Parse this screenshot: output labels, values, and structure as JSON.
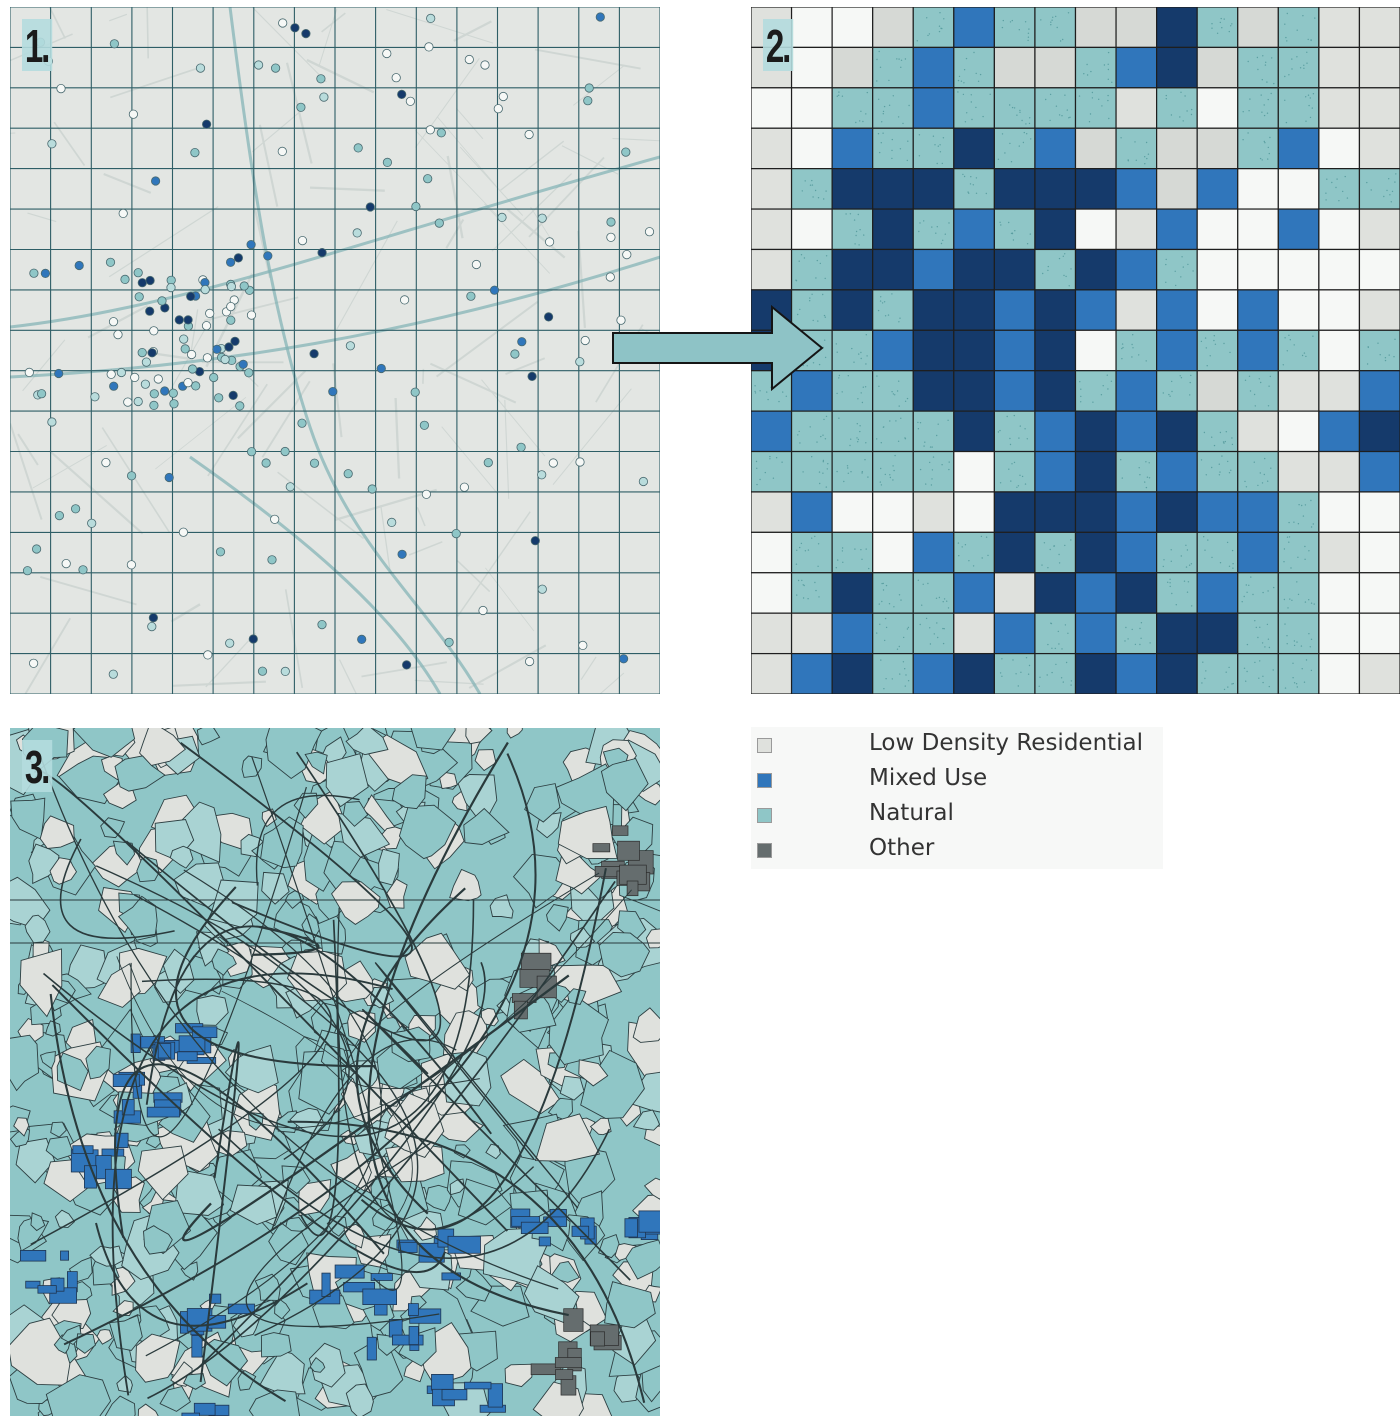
{
  "panels": [
    {
      "number": "1."
    },
    {
      "number": "2."
    },
    {
      "number": "3."
    }
  ],
  "colors": {
    "low_density_residential": "#dfe1dd",
    "mixed_use": "#3076bb",
    "natural": "#8fc6c7",
    "other": "#656d6e",
    "very_light": "#f6f8f6",
    "dark_navy": "#153a6b",
    "map_background": "#e3e6e3",
    "map_grid": "#2e5e66",
    "arrow_fill": "#8ec3c6"
  },
  "legend": {
    "items": [
      {
        "label": "Low Density Residential",
        "color": "#dfe1dd"
      },
      {
        "label": "Mixed Use",
        "color": "#3076bb"
      },
      {
        "label": "Natural",
        "color": "#8fc6c7"
      },
      {
        "label": "Other",
        "color": "#656d6e"
      }
    ]
  },
  "grid": {
    "rows": [
      "21134W4433543422",
      "2134W4334W534422",
      "1144W44442414422",
      "21W4454W34334W12",
      "245554555W3W1144",
      "21454W4512W11W12",
      "2455W5545W411111",
      "545455W5W2W1W112",
      "544W55W514W4W414",
      "4W4455W54W43422W",
      "W444454W5W5421W5",
      "4444414W54W4422W",
      "2W1121555W5WW411",
      "1441W4545W44W421",
      "14544W25W54W4411",
      "22W442W4W4554411",
      "2W54W5445W544412"
    ],
    "legend_code": "1 = very light, 2 = light grey, 4 = teal, W = medium blue, 5 = dark navy, 3 = light grey alt"
  },
  "points": {
    "visible": true
  }
}
